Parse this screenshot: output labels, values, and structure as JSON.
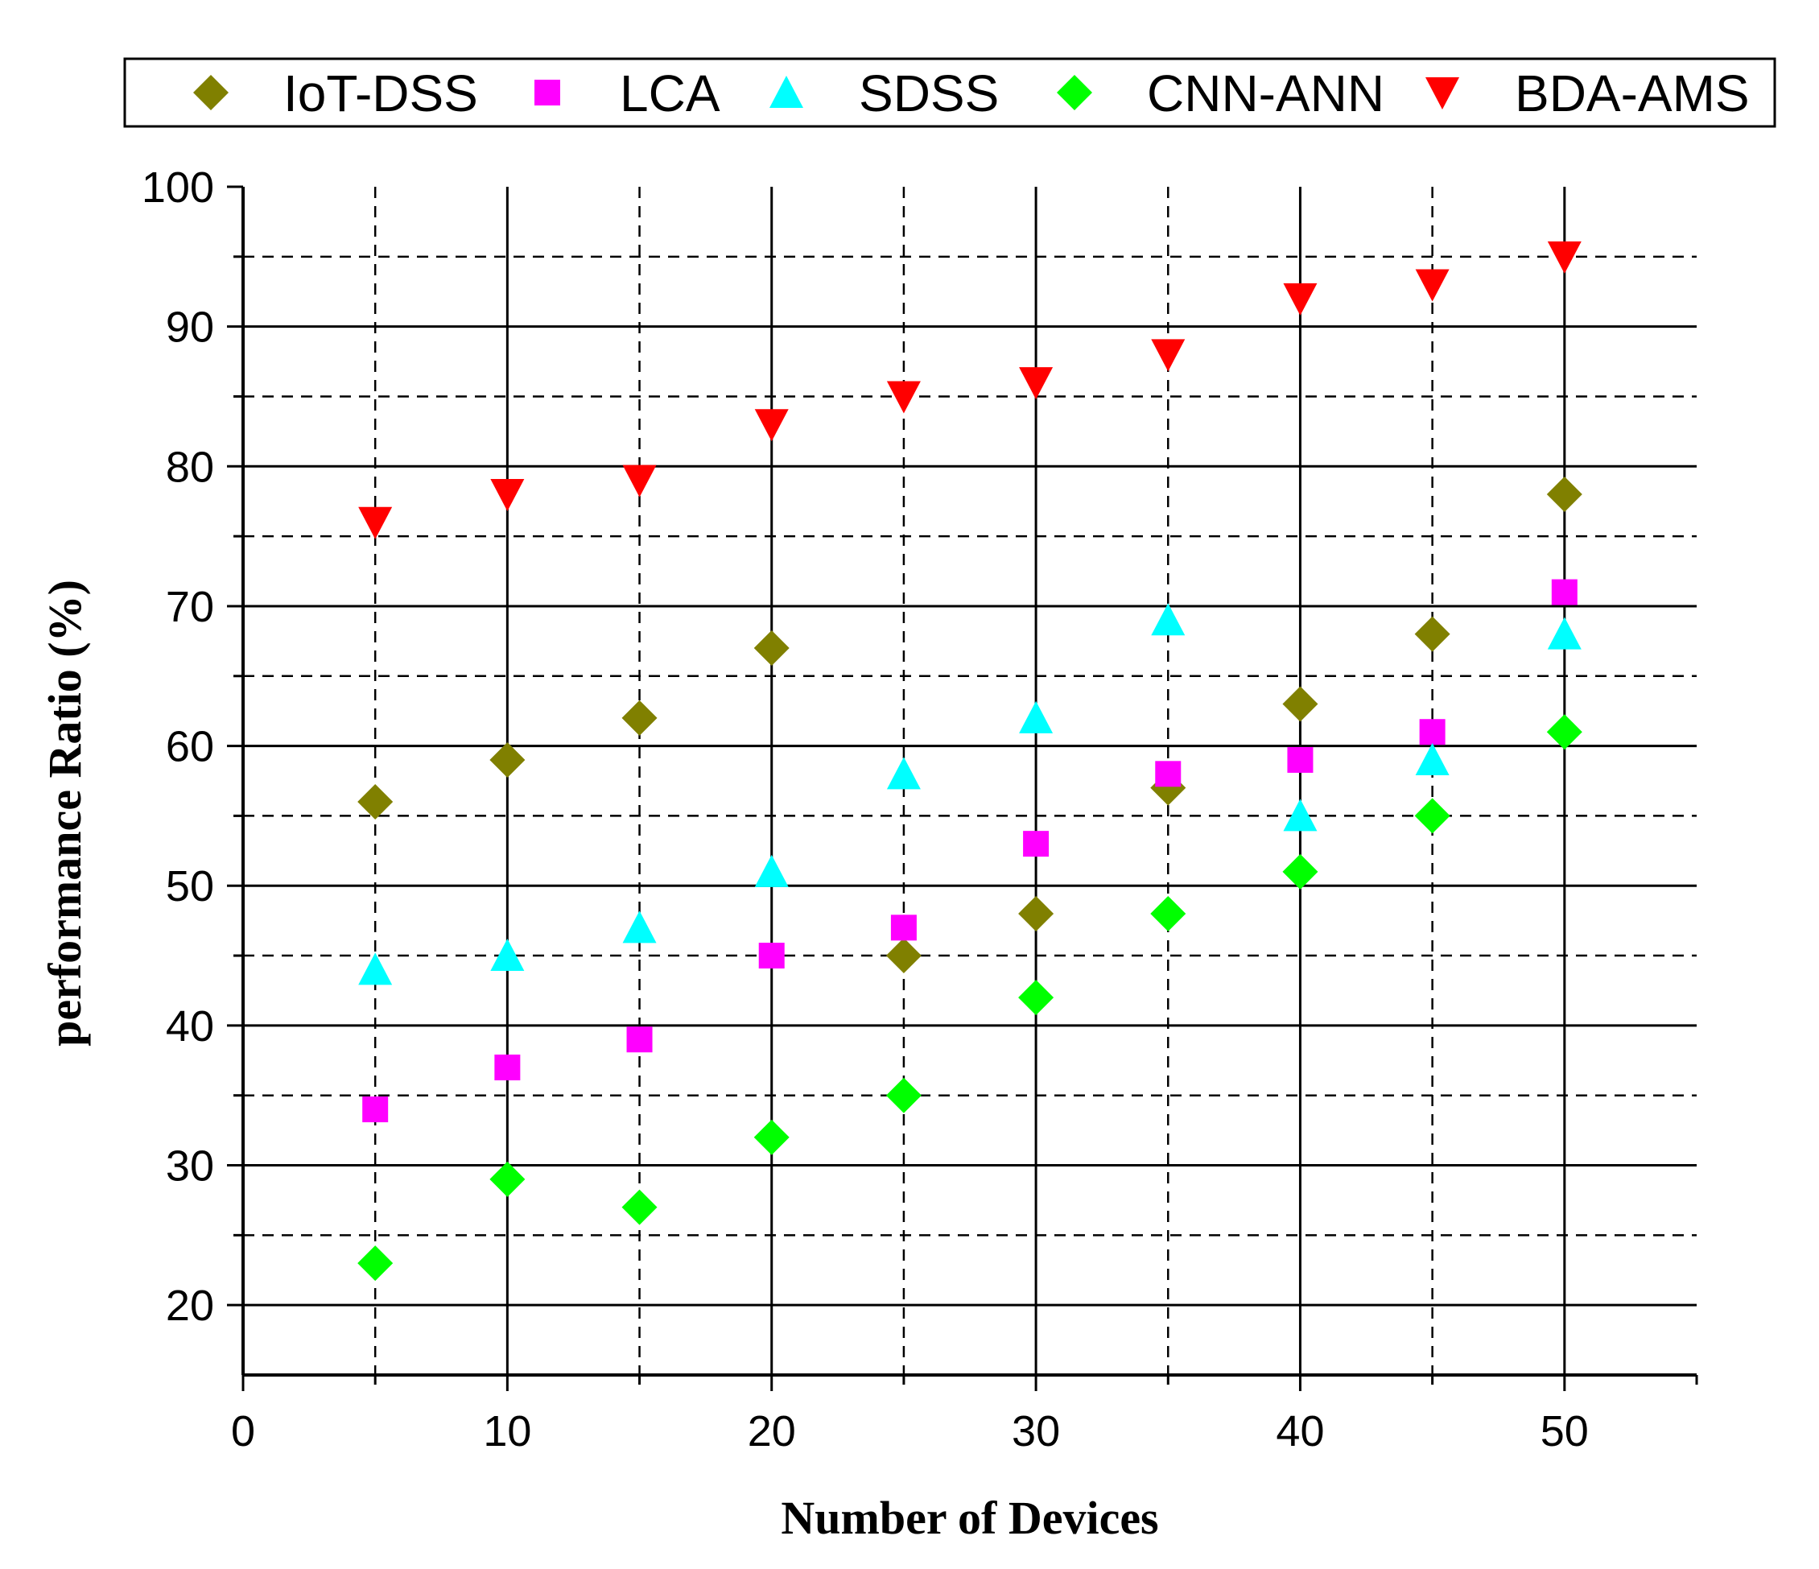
{
  "chart_data": {
    "type": "scatter",
    "title": "",
    "xlabel": "Number of Devices",
    "ylabel": "performance Ratio (%)",
    "xlim": [
      0,
      55
    ],
    "ylim": [
      15,
      100
    ],
    "x_ticks": [
      0,
      10,
      20,
      30,
      40,
      50
    ],
    "y_ticks": [
      20,
      30,
      40,
      50,
      60,
      70,
      80,
      90,
      100
    ],
    "grid": "solid major gridlines at every 10 units, dashed minor gridlines at every 5 units",
    "legend_position": "top",
    "x": [
      5,
      10,
      15,
      20,
      25,
      30,
      35,
      40,
      45,
      50
    ],
    "series": [
      {
        "name": "IoT-DSS",
        "marker": "diamond",
        "color": "#808000",
        "values": [
          56,
          59,
          62,
          67,
          45,
          48,
          57,
          63,
          68,
          78
        ]
      },
      {
        "name": "LCA",
        "marker": "square",
        "color": "#ff00ff",
        "values": [
          34,
          37,
          39,
          45,
          47,
          53,
          58,
          59,
          61,
          71
        ]
      },
      {
        "name": "SDSS",
        "marker": "triangle-up",
        "color": "#00ffff",
        "values": [
          44,
          45,
          47,
          51,
          58,
          62,
          69,
          55,
          59,
          68
        ]
      },
      {
        "name": "CNN-ANN",
        "marker": "diamond",
        "color": "#00ff00",
        "values": [
          23,
          29,
          27,
          32,
          35,
          42,
          48,
          51,
          55,
          61
        ]
      },
      {
        "name": "BDA-AMS",
        "marker": "triangle-down",
        "color": "#ff0000",
        "values": [
          76,
          78,
          79,
          83,
          85,
          86,
          88,
          92,
          93,
          95
        ]
      }
    ]
  }
}
